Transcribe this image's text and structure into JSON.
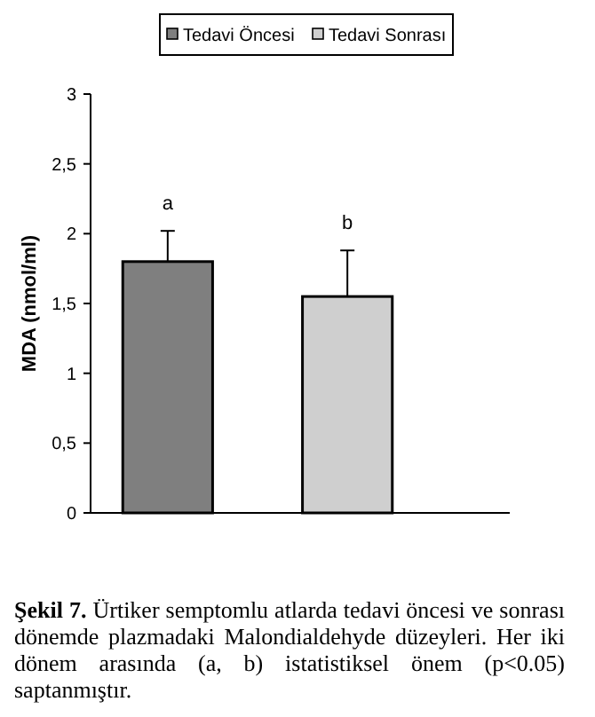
{
  "chart_data": {
    "type": "bar",
    "categories": [
      null,
      null
    ],
    "series": [
      {
        "name": "Tedavi Öncesi",
        "color": "#7f7f7f",
        "values": [
          1.8,
          null
        ],
        "errors": [
          [
            1.8,
            2.02
          ],
          null
        ]
      },
      {
        "name": "Tedavi Sonrası",
        "color": "#cfcfcf",
        "values": [
          null,
          1.55
        ],
        "errors": [
          null,
          [
            1.55,
            1.88
          ]
        ]
      }
    ],
    "ylabel": "MDA (nmol/ml)",
    "ylim": [
      0,
      3
    ],
    "yticks": [
      0,
      {
        "value": 0.5,
        "label": "0,5"
      },
      1,
      {
        "value": 1.5,
        "label": "1,5"
      },
      2,
      {
        "value": 2.5,
        "label": "2,5"
      },
      3
    ],
    "legend": "top",
    "grid": false,
    "annotations": [
      "a",
      "b",
      "Şekil 7. Ürtiker semptomlu atlarda tedavi öncesi ve sonrası dönemde plazmadaki Malondialdehyde düzeyleri. Her iki dönem arasında (a, b) istatistiksel önem (p<0.05) saptanmıştır."
    ]
  }
}
